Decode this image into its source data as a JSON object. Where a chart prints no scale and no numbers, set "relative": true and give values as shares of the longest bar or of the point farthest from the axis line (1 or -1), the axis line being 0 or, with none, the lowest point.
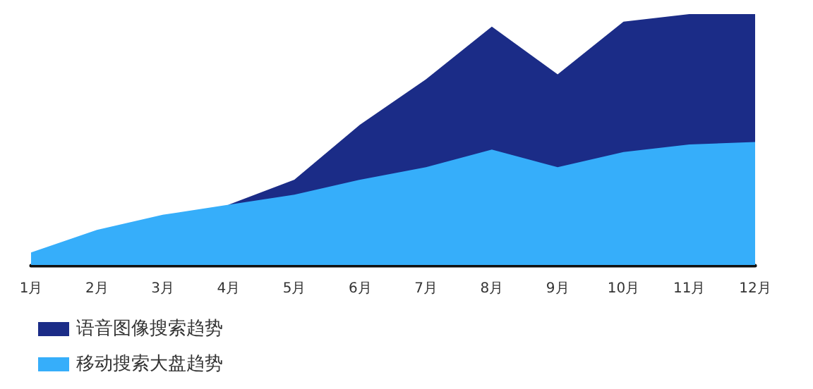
{
  "chart_data": {
    "type": "area",
    "relative": true,
    "categories": [
      "1月",
      "2月",
      "3月",
      "4月",
      "5月",
      "6月",
      "7月",
      "8月",
      "9月",
      "10月",
      "11月",
      "12月"
    ],
    "series": [
      {
        "name": "语音图像搜索趋势",
        "color": "#1b2c87",
        "values": [
          null,
          null,
          null,
          0.24,
          0.34,
          0.56,
          0.74,
          0.95,
          0.76,
          0.97,
          1,
          1
        ]
      },
      {
        "name": "移动搜索大盘趋势",
        "color": "#36aefa",
        "values": [
          0.05,
          0.14,
          0.2,
          0.24,
          0.28,
          0.34,
          0.39,
          0.46,
          0.39,
          0.45,
          0.48,
          0.49
        ]
      }
    ],
    "legend": "bottom left",
    "grid": false
  }
}
